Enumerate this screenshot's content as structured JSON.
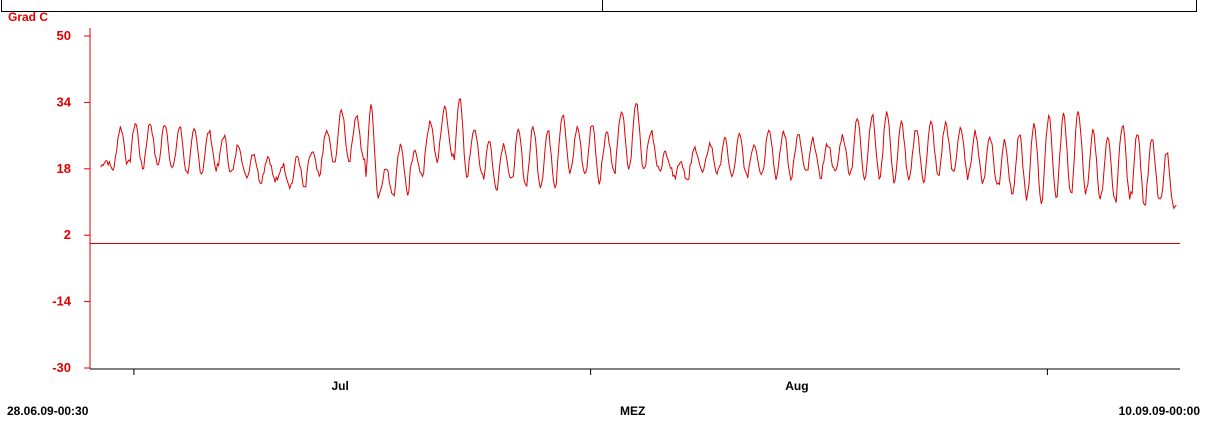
{
  "chart_data": {
    "type": "line",
    "ylabel": "Grad C",
    "yticks": [
      50,
      34,
      18,
      2,
      -14,
      -30
    ],
    "ylim": [
      -30,
      50
    ],
    "xlim": [
      "2009-06-28T00:30",
      "2009-09-10T00:00"
    ],
    "month_labels": [
      {
        "label": "Jul",
        "at": "2009-07-15"
      },
      {
        "label": "Aug",
        "at": "2009-08-15"
      }
    ],
    "month_ticks": [
      "2009-07-01",
      "2009-08-01",
      "2009-09-01"
    ],
    "reference_line": {
      "y": 0,
      "color": "#e00000"
    },
    "grid": false,
    "color": "#e00000",
    "series": [
      {
        "x_start": "2009-06-28T18:00",
        "step_days": 1,
        "daily_min": [
          18,
          19,
          18,
          19,
          18,
          17,
          17,
          18,
          17,
          16,
          15,
          15,
          14,
          13,
          16,
          19,
          20,
          20,
          11,
          12,
          12,
          16,
          20,
          21,
          16,
          17,
          13,
          15,
          14,
          14,
          14,
          17,
          17,
          15,
          17,
          18,
          18,
          18,
          17,
          15,
          17,
          17,
          16,
          16,
          17,
          16,
          16,
          17,
          16,
          17,
          17,
          16,
          16,
          15,
          15,
          15,
          16,
          17,
          16,
          15,
          14,
          12,
          11,
          10,
          11,
          12,
          12,
          11,
          10,
          11,
          9,
          10,
          8,
          6
        ],
        "daily_max": [
          20,
          28,
          29,
          29,
          29,
          28,
          27,
          27,
          26,
          24,
          22,
          21,
          19,
          21,
          22,
          27,
          32,
          31,
          33,
          18,
          24,
          22,
          29,
          33,
          35,
          28,
          25,
          24,
          27,
          28,
          27,
          31,
          28,
          29,
          27,
          32,
          34,
          27,
          22,
          20,
          23,
          24,
          25,
          26,
          24,
          28,
          27,
          26,
          25,
          24,
          26,
          30,
          31,
          32,
          29,
          28,
          29,
          29,
          28,
          27,
          26,
          25,
          26,
          29,
          31,
          31,
          32,
          27,
          25,
          29,
          27,
          25,
          22,
          23
        ]
      }
    ]
  },
  "footer": {
    "start": "28.06.09-00:30",
    "zone": "MEZ",
    "end": "10.09.09-00:00"
  }
}
